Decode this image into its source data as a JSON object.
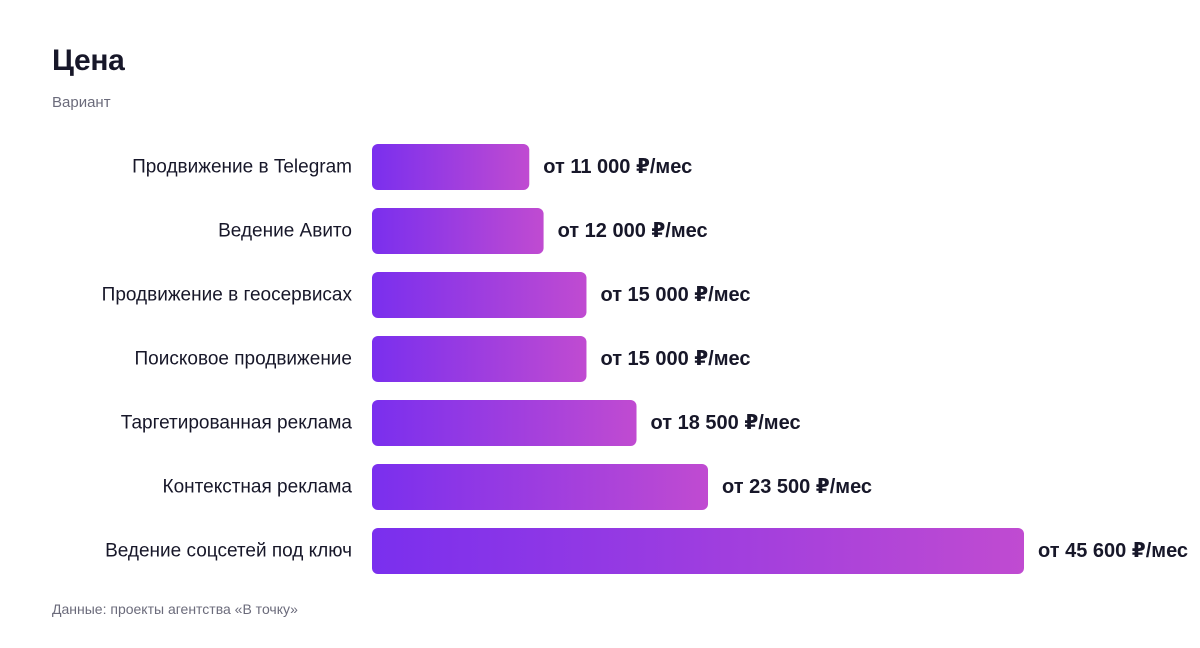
{
  "title": "Цена",
  "subtitle": "Вариант",
  "footer": "Данные: проекты агентства «В точку»",
  "colors": {
    "bar_start": "#7a2fee",
    "bar_end": "#c04bd1",
    "label_text": "#171729",
    "muted_text": "#6b6b7b"
  },
  "chart_data": {
    "type": "bar",
    "orientation": "horizontal",
    "title": "Цена",
    "subtitle": "Вариант",
    "categories": [
      "Продвижение в Telegram",
      "Ведение Авито",
      "Продвижение в геосервисах",
      "Поисковое продвижение",
      "Таргетированная реклама",
      "Контекстная реклама",
      "Ведение соцсетей под ключ"
    ],
    "values": [
      11000,
      12000,
      15000,
      15000,
      18500,
      23500,
      45600
    ],
    "data_labels": [
      "от 11 000 ₽/мес",
      "от 12 000 ₽/мес",
      "от 15 000 ₽/мес",
      "от 15 000 ₽/мес",
      "от 18 500 ₽/мес",
      "от 23 500 ₽/мес",
      "от 45 600 ₽/мес"
    ],
    "xlim": [
      0,
      45600
    ],
    "grid": false,
    "legend": false
  }
}
